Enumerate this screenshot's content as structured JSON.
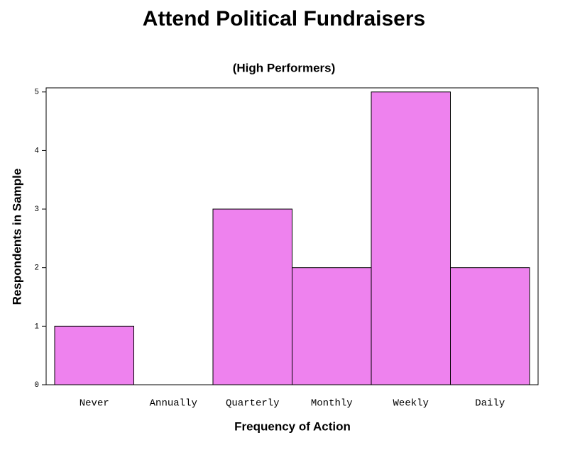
{
  "chart_data": {
    "type": "bar",
    "title": "Attend Political Fundraisers",
    "subtitle": "(High Performers)",
    "x_label": "Frequency of Action",
    "y_label": "Respondents in Sample",
    "categories": [
      "Never",
      "Annually",
      "Quarterly",
      "Monthly",
      "Weekly",
      "Daily"
    ],
    "values": [
      1,
      0,
      3,
      2,
      5,
      2
    ],
    "color": "#ee82ee",
    "ylim": [
      0,
      5.07
    ],
    "yticks": [
      0,
      1,
      2,
      3,
      4,
      5
    ],
    "grid": false
  }
}
